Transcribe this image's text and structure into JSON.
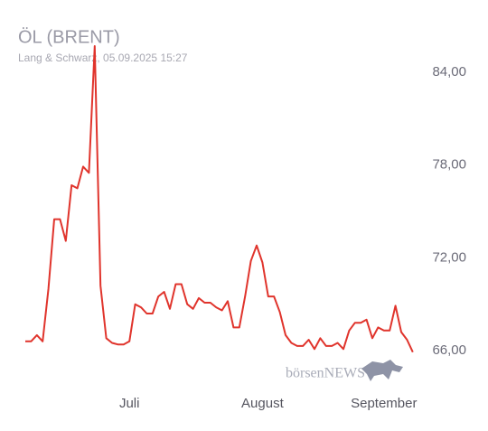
{
  "chart_data": {
    "type": "line",
    "title": "ÖL (BRENT)",
    "subtitle": "Lang & Schwarz, 05.09.2025 15:27",
    "watermark": "börsenNEWS",
    "color": "#e0342c",
    "categories": [
      null,
      null,
      null,
      null,
      null,
      null,
      null,
      null,
      null,
      null,
      null,
      null,
      null,
      null,
      null,
      null,
      null,
      null,
      "Juli",
      null,
      null,
      null,
      null,
      null,
      null,
      null,
      null,
      null,
      null,
      null,
      null,
      null,
      null,
      null,
      null,
      null,
      null,
      null,
      null,
      null,
      null,
      "August",
      null,
      null,
      null,
      null,
      null,
      null,
      null,
      null,
      null,
      null,
      null,
      null,
      null,
      null,
      null,
      null,
      null,
      null,
      null,
      null,
      "September",
      null,
      null,
      null,
      null,
      null
    ],
    "values": [
      66.6,
      66.6,
      67.0,
      66.6,
      70.0,
      74.5,
      74.5,
      73.1,
      76.7,
      76.5,
      77.9,
      77.5,
      85.7,
      70.2,
      66.8,
      66.5,
      66.4,
      66.4,
      66.6,
      69.0,
      68.8,
      68.4,
      68.4,
      69.5,
      69.8,
      68.7,
      70.3,
      70.3,
      69.0,
      68.7,
      69.4,
      69.1,
      69.1,
      68.8,
      68.6,
      69.2,
      67.5,
      67.5,
      69.5,
      71.8,
      72.8,
      71.7,
      69.5,
      69.5,
      68.5,
      67.0,
      66.5,
      66.3,
      66.3,
      66.7,
      66.1,
      66.8,
      66.3,
      66.3,
      66.5,
      66.1,
      67.3,
      67.8,
      67.8,
      68.0,
      66.8,
      67.5,
      67.3,
      67.3,
      68.9,
      67.2,
      66.7,
      65.9
    ],
    "ylim": [
      65.3,
      86.05
    ],
    "yticks": [
      {
        "value": 66,
        "label": "66,00"
      },
      {
        "value": 72,
        "label": "72,00"
      },
      {
        "value": 78,
        "label": "78,00"
      },
      {
        "value": 84,
        "label": "84,00"
      }
    ],
    "grid": false
  }
}
